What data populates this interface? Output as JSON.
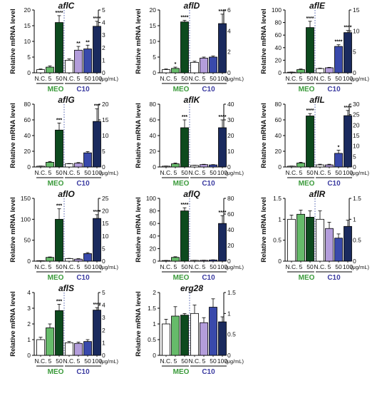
{
  "figure": {
    "y_label": "Relative mRNA level",
    "unit_label": "(μg/mL)",
    "group_meo": "MEO",
    "group_c10": "C10",
    "x_tick_labels": [
      "N.C.",
      "5",
      "50",
      "N.C.",
      "5",
      "50",
      "100"
    ],
    "colors": {
      "nc": "#ffffff",
      "meo_5": "#66bb6a",
      "meo_50": "#0d4a1e",
      "c10_nc": "#ffffff",
      "c10_5": "#b39ddb",
      "c10_50": "#3949ab",
      "c10_100": "#1a2a5e",
      "meo_text": "#3a9a3a",
      "c10_text": "#3a3aa0"
    }
  },
  "chart_data": [
    {
      "type": "bar",
      "title": "aflC",
      "left_ylim": [
        0,
        20
      ],
      "left_ticks": [
        0,
        5,
        10,
        15,
        20
      ],
      "right_ylim": [
        0,
        5
      ],
      "right_ticks": [
        0,
        1,
        2,
        3,
        4,
        5
      ],
      "meo": {
        "values": [
          1.0,
          1.8,
          16.0
        ],
        "errors": [
          0.2,
          0.4,
          2.2
        ],
        "sig": [
          "",
          "",
          "****"
        ]
      },
      "c10": {
        "values": [
          1.0,
          1.8,
          1.9,
          3.7
        ],
        "errors": [
          0.1,
          0.3,
          0.3,
          0.4
        ],
        "sig": [
          "",
          "**",
          "**",
          "****"
        ]
      }
    },
    {
      "type": "bar",
      "title": "aflD",
      "left_ylim": [
        0,
        20
      ],
      "left_ticks": [
        0,
        5,
        10,
        15,
        20
      ],
      "right_ylim": [
        0,
        6
      ],
      "right_ticks": [
        0,
        2,
        4,
        6
      ],
      "meo": {
        "values": [
          1.0,
          1.4,
          16.2
        ],
        "errors": [
          0.2,
          0.4,
          0.5
        ],
        "sig": [
          "",
          "*",
          "****"
        ]
      },
      "c10": {
        "values": [
          1.0,
          1.4,
          1.5,
          4.7
        ],
        "errors": [
          0.1,
          0.1,
          0.1,
          0.9
        ],
        "sig": [
          "",
          "",
          "",
          "****"
        ]
      }
    },
    {
      "type": "bar",
      "title": "aflE",
      "left_ylim": [
        0,
        100
      ],
      "left_ticks": [
        0,
        20,
        40,
        60,
        80,
        100
      ],
      "right_ylim": [
        0,
        15
      ],
      "right_ticks": [
        0,
        5,
        10,
        15
      ],
      "meo": {
        "values": [
          1.0,
          5.0,
          72.0
        ],
        "errors": [
          0.2,
          1.0,
          10.0
        ],
        "sig": [
          "",
          "",
          "****"
        ]
      },
      "c10": {
        "values": [
          1.0,
          1.2,
          6.3,
          9.6
        ],
        "errors": [
          0.1,
          0.1,
          0.4,
          0.5
        ],
        "sig": [
          "",
          "",
          "****",
          "****"
        ]
      }
    },
    {
      "type": "bar",
      "title": "aflG",
      "left_ylim": [
        0,
        80
      ],
      "left_ticks": [
        0,
        20,
        40,
        60,
        80
      ],
      "right_ylim": [
        0,
        20
      ],
      "right_ticks": [
        0,
        5,
        10,
        15,
        20
      ],
      "meo": {
        "values": [
          1.0,
          6.0,
          47.0
        ],
        "errors": [
          0.2,
          1.0,
          9.0
        ],
        "sig": [
          "",
          "",
          "***"
        ]
      },
      "c10": {
        "values": [
          1.0,
          1.2,
          4.5,
          14.5
        ],
        "errors": [
          0.1,
          0.2,
          0.4,
          4.0
        ],
        "sig": [
          "",
          "",
          "",
          "***"
        ]
      }
    },
    {
      "type": "bar",
      "title": "aflK",
      "left_ylim": [
        0,
        80
      ],
      "left_ticks": [
        0,
        20,
        40,
        60,
        80
      ],
      "right_ylim": [
        0,
        40
      ],
      "right_ticks": [
        0,
        10,
        20,
        30,
        40
      ],
      "meo": {
        "values": [
          1.0,
          4.0,
          50.0
        ],
        "errors": [
          0.2,
          1.0,
          10.0
        ],
        "sig": [
          "",
          "",
          "***"
        ]
      },
      "c10": {
        "values": [
          1.0,
          1.5,
          1.3,
          25.0
        ],
        "errors": [
          0.1,
          0.2,
          0.2,
          5.0
        ],
        "sig": [
          "",
          "",
          "",
          "****"
        ]
      }
    },
    {
      "type": "bar",
      "title": "aflL",
      "left_ylim": [
        0,
        80
      ],
      "left_ticks": [
        0,
        20,
        40,
        60,
        80
      ],
      "right_ylim": [
        0,
        30
      ],
      "right_ticks": [
        0,
        5,
        10,
        15,
        20,
        25,
        30
      ],
      "meo": {
        "values": [
          1.0,
          5.0,
          65.0
        ],
        "errors": [
          0.2,
          1.0,
          3.0
        ],
        "sig": [
          "",
          "",
          "****"
        ]
      },
      "c10": {
        "values": [
          1.0,
          1.0,
          6.5,
          24.5
        ],
        "errors": [
          0.3,
          0.3,
          1.5,
          2.5
        ],
        "sig": [
          "",
          "",
          "*",
          "****"
        ]
      }
    },
    {
      "type": "bar",
      "title": "aflO",
      "left_ylim": [
        0,
        150
      ],
      "left_ticks": [
        0,
        50,
        100,
        150
      ],
      "right_ylim": [
        0,
        25
      ],
      "right_ticks": [
        0,
        5,
        10,
        15,
        20,
        25
      ],
      "meo": {
        "values": [
          1.0,
          9.0,
          100.0
        ],
        "errors": [
          0.2,
          1.0,
          25.0
        ],
        "sig": [
          "",
          "",
          "***"
        ]
      },
      "c10": {
        "values": [
          1.0,
          0.8,
          3.0,
          17.0
        ],
        "errors": [
          0.1,
          0.2,
          0.4,
          1.5
        ],
        "sig": [
          "",
          "",
          "",
          "****"
        ]
      }
    },
    {
      "type": "bar",
      "title": "aflQ",
      "left_ylim": [
        0,
        100
      ],
      "left_ticks": [
        0,
        20,
        40,
        60,
        80,
        100
      ],
      "right_ylim": [
        0,
        80
      ],
      "right_ticks": [
        0,
        20,
        40,
        60,
        80
      ],
      "meo": {
        "values": [
          1.0,
          6.0,
          80.0
        ],
        "errors": [
          0.2,
          1.0,
          5.0
        ],
        "sig": [
          "",
          "",
          "****"
        ]
      },
      "c10": {
        "values": [
          1.0,
          1.0,
          1.5,
          48.0
        ],
        "errors": [
          0.1,
          0.2,
          0.2,
          10.0
        ],
        "sig": [
          "",
          "",
          "",
          "****"
        ]
      }
    },
    {
      "type": "bar",
      "title": "aflR",
      "left_ylim": [
        0,
        1.5
      ],
      "left_ticks": [
        0,
        0.5,
        1.0,
        1.5
      ],
      "right_ylim": [
        0,
        1.5
      ],
      "right_ticks": [
        0,
        0.5,
        1.0,
        1.5
      ],
      "meo": {
        "values": [
          1.0,
          1.12,
          1.05
        ],
        "errors": [
          0.1,
          0.1,
          0.15
        ],
        "sig": [
          "",
          "",
          ""
        ]
      },
      "c10": {
        "values": [
          1.0,
          0.78,
          0.55,
          0.83
        ],
        "errors": [
          0.2,
          0.15,
          0.1,
          0.15
        ],
        "sig": [
          "",
          "",
          "",
          ""
        ]
      }
    },
    {
      "type": "bar",
      "title": "aflS",
      "left_ylim": [
        0,
        4
      ],
      "left_ticks": [
        0,
        1,
        2,
        3,
        4
      ],
      "right_ylim": [
        0,
        5
      ],
      "right_ticks": [
        0,
        1,
        2,
        3,
        4,
        5
      ],
      "meo": {
        "values": [
          1.0,
          1.75,
          2.85
        ],
        "errors": [
          0.15,
          0.25,
          0.4
        ],
        "sig": [
          "",
          "",
          "***"
        ]
      },
      "c10": {
        "values": [
          1.0,
          0.95,
          1.1,
          3.6
        ],
        "errors": [
          0.1,
          0.1,
          0.15,
          0.2
        ],
        "sig": [
          "",
          "",
          "",
          "****"
        ]
      }
    },
    {
      "type": "bar",
      "title": "erg28",
      "left_ylim": [
        0,
        2.0
      ],
      "left_ticks": [
        0,
        0.5,
        1.0,
        1.5,
        2.0
      ],
      "right_ylim": [
        0,
        1.5
      ],
      "right_ticks": [
        0,
        0.5,
        1.0,
        1.5
      ],
      "meo": {
        "values": [
          1.0,
          1.25,
          1.28
        ],
        "errors": [
          0.15,
          0.3,
          0.05
        ],
        "sig": [
          "",
          "",
          ""
        ]
      },
      "c10": {
        "values": [
          1.0,
          0.78,
          1.15,
          0.8
        ],
        "errors": [
          0.2,
          0.12,
          0.2,
          0.12
        ],
        "sig": [
          "",
          "",
          "",
          ""
        ]
      }
    }
  ]
}
